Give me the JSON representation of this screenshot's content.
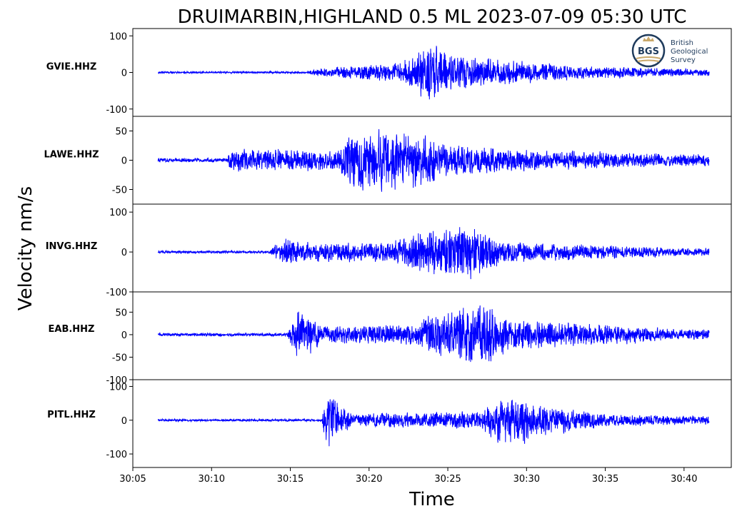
{
  "chart_data": {
    "type": "line",
    "title": "DRUIMARBIN,HIGHLAND 0.5 ML   2023-07-09 05:30 UTC",
    "xlabel": "Time",
    "ylabel": "Velocity nm/s",
    "x_range": [
      "30:05",
      "30:43"
    ],
    "x_ticks": [
      "30:05",
      "30:10",
      "30:15",
      "30:20",
      "30:25",
      "30:30",
      "30:35",
      "30:40"
    ],
    "series_color": "#0000ff",
    "logo": {
      "mark": "BGS",
      "lines": [
        "British",
        "Geological",
        "Survey"
      ]
    },
    "panels": [
      {
        "name": "GVIE.HHZ",
        "ylim": [
          -120,
          120
        ],
        "y_ticks": [
          "100",
          "0",
          "-100"
        ],
        "y_tick_values": [
          100,
          0,
          -100
        ],
        "envelope": [
          [
            0,
            3
          ],
          [
            11,
            3
          ],
          [
            12,
            14
          ],
          [
            17,
            32
          ],
          [
            19,
            95
          ],
          [
            20,
            60
          ],
          [
            23,
            42
          ],
          [
            28,
            22
          ],
          [
            35,
            12
          ]
        ],
        "seed": 11
      },
      {
        "name": "LAWE.HHZ",
        "ylim": [
          -75,
          75
        ],
        "y_ticks": [
          "50",
          "0",
          "-50"
        ],
        "y_tick_values": [
          50,
          0,
          -50
        ],
        "envelope": [
          [
            0,
            4
          ],
          [
            6,
            4
          ],
          [
            6.2,
            22
          ],
          [
            13,
            20
          ],
          [
            14,
            58
          ],
          [
            18,
            55
          ],
          [
            20,
            32
          ],
          [
            25,
            20
          ],
          [
            35,
            12
          ]
        ],
        "seed": 23
      },
      {
        "name": "INVG.HHZ",
        "ylim": [
          -100,
          120
        ],
        "y_ticks": [
          "100",
          "0",
          "-100"
        ],
        "y_tick_values": [
          100,
          0,
          -100
        ],
        "envelope": [
          [
            0,
            4
          ],
          [
            8.7,
            4
          ],
          [
            9.5,
            45
          ],
          [
            11,
            28
          ],
          [
            16,
            28
          ],
          [
            18,
            55
          ],
          [
            21,
            85
          ],
          [
            24,
            30
          ],
          [
            35,
            12
          ]
        ],
        "seed": 37
      },
      {
        "name": "EAB.HHZ",
        "ylim": [
          -100,
          95
        ],
        "y_ticks": [
          "50",
          "0",
          "-50",
          "-100"
        ],
        "y_tick_values": [
          50,
          0,
          -50,
          -100
        ],
        "envelope": [
          [
            0,
            4
          ],
          [
            9.8,
            4
          ],
          [
            10.5,
            75
          ],
          [
            12,
            22
          ],
          [
            18,
            26
          ],
          [
            19,
            55
          ],
          [
            22.5,
            80
          ],
          [
            24,
            40
          ],
          [
            35,
            14
          ]
        ],
        "seed": 49
      },
      {
        "name": "PITL.HHZ",
        "ylim": [
          -140,
          120
        ],
        "y_ticks": [
          "100",
          "0",
          "-100"
        ],
        "y_tick_values": [
          100,
          0,
          -100
        ],
        "envelope": [
          [
            0,
            4
          ],
          [
            12,
            4
          ],
          [
            12.3,
            100
          ],
          [
            13.5,
            40
          ],
          [
            14,
            22
          ],
          [
            22,
            30
          ],
          [
            24,
            100
          ],
          [
            26,
            55
          ],
          [
            30,
            22
          ],
          [
            35,
            15
          ]
        ],
        "seed": 61
      }
    ]
  }
}
